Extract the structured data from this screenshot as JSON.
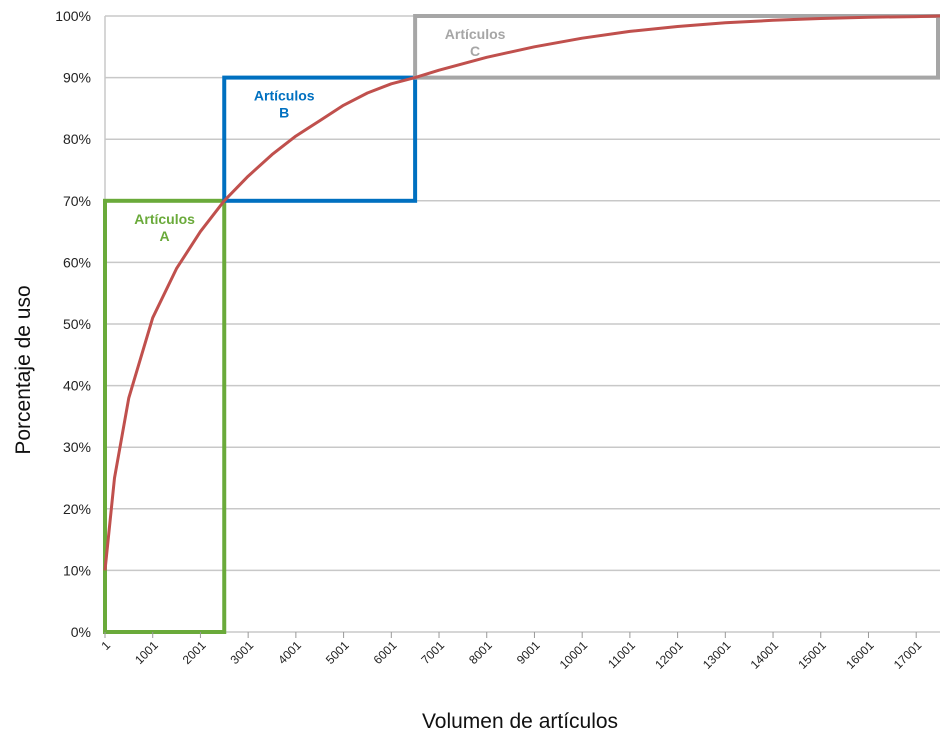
{
  "chart_data": {
    "type": "line",
    "title": "",
    "xlabel": "Volumen de artículos",
    "ylabel": "Porcentaje de uso",
    "xlim": [
      1,
      17500
    ],
    "ylim": [
      0,
      100
    ],
    "y_ticks": [
      "0%",
      "10%",
      "20%",
      "30%",
      "40%",
      "50%",
      "60%",
      "70%",
      "80%",
      "90%",
      "100%"
    ],
    "x_ticks": [
      "1",
      "1001",
      "2001",
      "3001",
      "4001",
      "5001",
      "6001",
      "7001",
      "8001",
      "9001",
      "10001",
      "11001",
      "12001",
      "13001",
      "14001",
      "15001",
      "16001",
      "17001"
    ],
    "grid": true,
    "series_color": "#c0504d",
    "series": [
      {
        "x": [
          1,
          200,
          500,
          1000,
          1500,
          2000,
          2500,
          3000,
          3500,
          4000,
          4500,
          5000,
          5500,
          6000,
          6500,
          7000,
          8000,
          9000,
          10000,
          11000,
          12000,
          13000,
          14000,
          15000,
          16000,
          17000,
          17500
        ],
        "values": [
          10,
          25,
          38,
          51,
          59,
          65,
          70,
          74,
          77.5,
          80.5,
          83,
          85.5,
          87.5,
          89,
          90,
          91.2,
          93.3,
          95,
          96.4,
          97.5,
          98.3,
          98.9,
          99.3,
          99.6,
          99.8,
          99.9,
          100
        ]
      }
    ],
    "zones": [
      {
        "line1": "Artículos",
        "line2": "A",
        "color": "#6aaa3a",
        "x_range": [
          1,
          2500
        ],
        "y_range": [
          0,
          70
        ]
      },
      {
        "line1": "Artículos",
        "line2": "B",
        "color": "#0070c0",
        "x_range": [
          2500,
          6500
        ],
        "y_range": [
          70,
          90
        ]
      },
      {
        "line1": "Artículos",
        "line2": "C",
        "color": "#a6a6a6",
        "x_range": [
          6500,
          17500
        ],
        "y_range": [
          90,
          100
        ]
      }
    ]
  }
}
